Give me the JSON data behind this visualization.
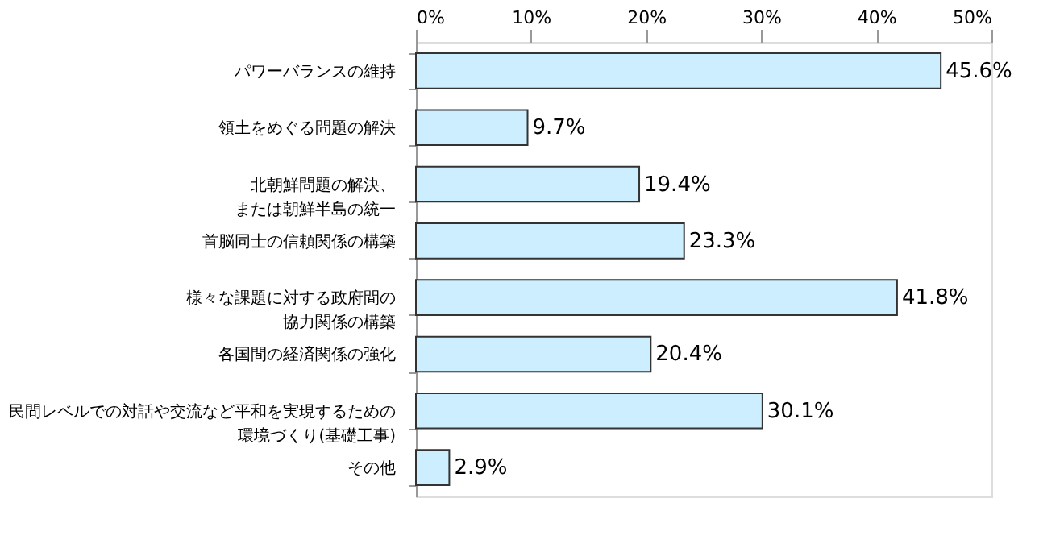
{
  "chart_data": {
    "type": "bar",
    "orientation": "horizontal",
    "categories": [
      "パワーバランスの維持",
      "領土をめぐる問題の解決",
      "北朝鮮問題の解決、または朝鮮半島の統一",
      "首脳同士の信頼関係の構築",
      "様々な課題に対する政府間の協力関係の構築",
      "各国間の経済関係の強化",
      "民間レベルでの対話や交流など平和を実現するための環境づくり(基礎工事)",
      "その他"
    ],
    "values": [
      45.6,
      9.7,
      19.4,
      23.3,
      41.8,
      20.4,
      30.1,
      2.9
    ],
    "value_labels": [
      "45.6%",
      "9.7%",
      "19.4%",
      "23.3%",
      "41.8%",
      "20.4%",
      "30.1%",
      "2.9%"
    ],
    "color": "#cceeff",
    "xlim": [
      0,
      50
    ],
    "xticks": [
      {
        "value": 0,
        "label": "0%"
      },
      {
        "value": 10,
        "label": "10%"
      },
      {
        "value": 20,
        "label": "20%"
      },
      {
        "value": 30,
        "label": "30%"
      },
      {
        "value": 40,
        "label": "40%"
      },
      {
        "value": 50,
        "label": "50%"
      }
    ],
    "grid": false
  }
}
